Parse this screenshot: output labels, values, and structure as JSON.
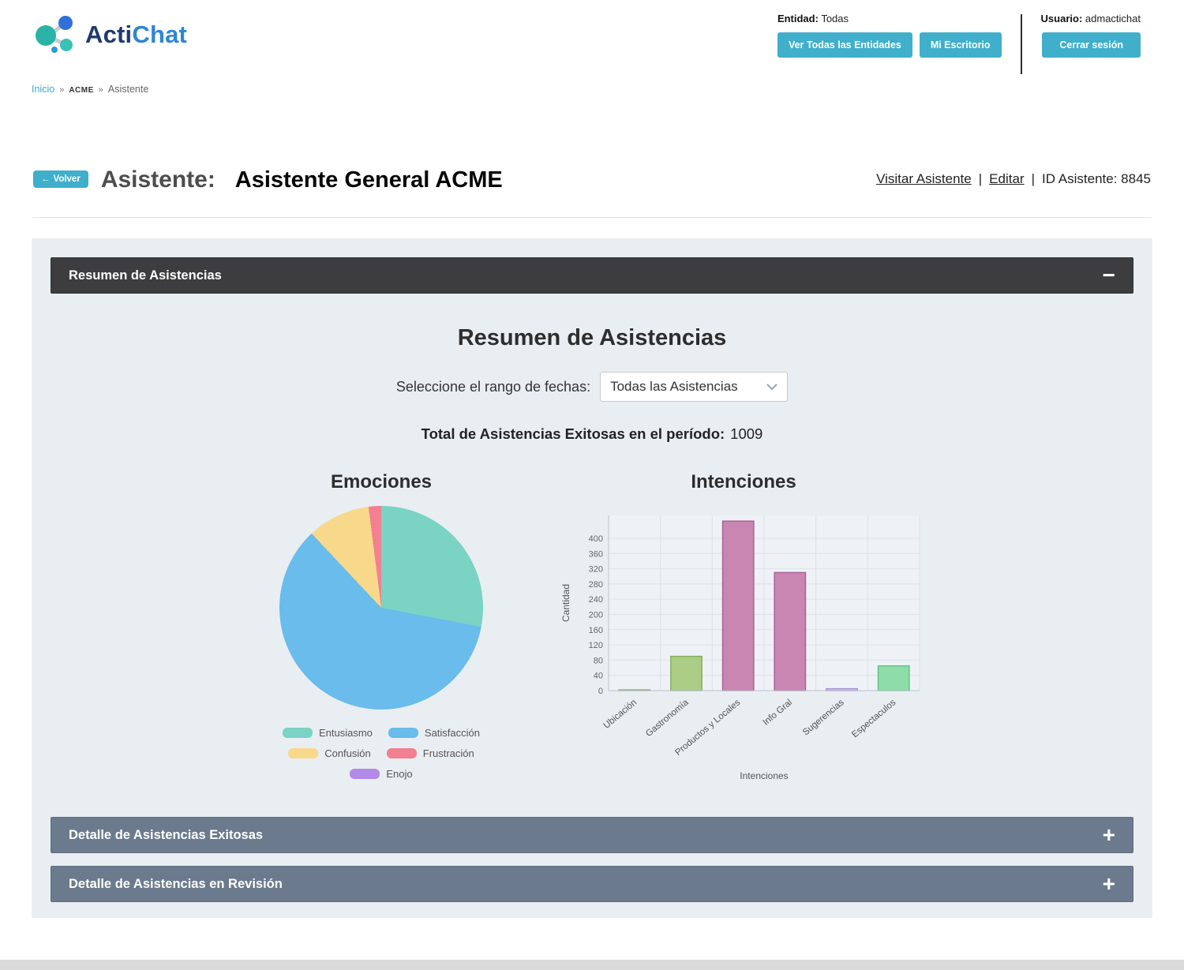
{
  "header": {
    "logo": {
      "primary": "Acti",
      "secondary": "Chat"
    },
    "entity": {
      "label": "Entidad:",
      "value": "Todas"
    },
    "buttons": {
      "ver_todas": "Ver Todas las Entidades",
      "mi_escritorio": "Mi Escritorio",
      "cerrar_sesion": "Cerrar sesión"
    },
    "user": {
      "label": "Usuario:",
      "value": "admactichat"
    }
  },
  "breadcrumb": {
    "home": "Inicio",
    "sep": "»",
    "entity": "ACME",
    "current": "Asistente"
  },
  "title_bar": {
    "back_arrow": "←",
    "back_label": "Volver",
    "label": "Asistente:",
    "name": "Asistente General ACME",
    "visit_link": "Visitar Asistente",
    "pipe": "|",
    "edit_link": "Editar",
    "id_label": "ID Asistente:",
    "id_value": "8845"
  },
  "summary_panel": {
    "header": "Resumen de Asistencias",
    "collapse_icon": "−",
    "section_title": "Resumen de Asistencias",
    "date_range_label": "Seleccione el rango de fechas:",
    "date_range_value": "Todas las Asistencias",
    "total_label": "Total de Asistencias Exitosas en el período:",
    "total_value": "1009"
  },
  "detail_panels": [
    {
      "header": "Detalle de Asistencias Exitosas",
      "expand_icon": "+"
    },
    {
      "header": "Detalle de Asistencias en Revisión",
      "expand_icon": "+"
    }
  ],
  "chart_data": [
    {
      "type": "pie",
      "title": "Emociones",
      "labels": [
        "Entusiasmo",
        "Satisfacción",
        "Confusión",
        "Frustración",
        "Enojo"
      ],
      "values_pct": [
        28,
        60,
        10,
        2,
        0
      ],
      "colors": [
        "#7ad3c3",
        "#69bcec",
        "#f8d88a",
        "#f28090",
        "#b08ae6"
      ],
      "legend_position": "bottom"
    },
    {
      "type": "bar",
      "title": "Intenciones",
      "categories": [
        "Ubicación",
        "Gastronomía",
        "Productos y Locales",
        "Info Gral",
        "Sugerencias",
        "Espectaculos"
      ],
      "values": [
        2,
        90,
        445,
        310,
        5,
        65
      ],
      "bar_fills": [
        "#b9d3a6",
        "#abcd85",
        "#c986b2",
        "#c986b2",
        "#cfc0ec",
        "#8edda8"
      ],
      "bar_strokes": [
        "#93b37a",
        "#84ad59",
        "#a75f92",
        "#a75f92",
        "#a891d8",
        "#5cc487"
      ],
      "xlabel": "Intenciones",
      "ylabel": "Cantidad",
      "yticks": [
        0,
        40,
        80,
        120,
        160,
        200,
        240,
        280,
        320,
        360,
        400
      ],
      "ylim": [
        0,
        460
      ],
      "grid": true
    }
  ]
}
